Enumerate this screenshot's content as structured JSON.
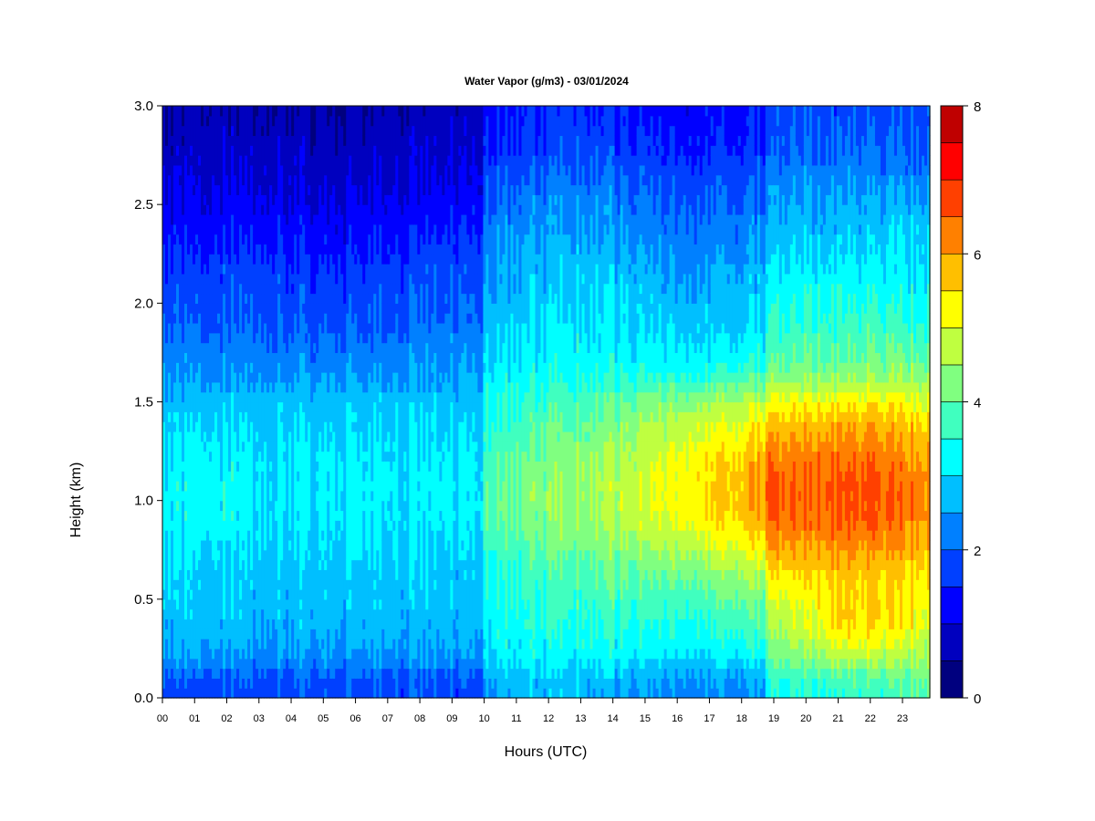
{
  "chart_data": {
    "type": "heatmap",
    "title": "Water Vapor (g/m3) - 03/01/2024",
    "xlabel": "Hours (UTC)",
    "ylabel": "Height (km)",
    "x_ticks": [
      "00",
      "01",
      "02",
      "03",
      "04",
      "05",
      "06",
      "07",
      "08",
      "09",
      "10",
      "11",
      "12",
      "13",
      "14",
      "15",
      "16",
      "17",
      "18",
      "19",
      "20",
      "21",
      "22",
      "23"
    ],
    "xlim": [
      0,
      23.85
    ],
    "y_ticks": [
      "0.0",
      "0.5",
      "1.0",
      "1.5",
      "2.0",
      "2.5",
      "3.0"
    ],
    "ylim": [
      0,
      3.0
    ],
    "colorbar": {
      "ticks": [
        "0",
        "2",
        "4",
        "6",
        "8"
      ],
      "range": [
        0,
        8
      ],
      "levels": [
        0,
        0.5,
        1,
        1.5,
        2,
        2.5,
        3,
        3.5,
        4,
        4.5,
        5,
        5.5,
        6,
        6.5,
        7,
        7.5,
        8
      ],
      "colors": [
        "#00007F",
        "#0000BF",
        "#0000FF",
        "#0040FF",
        "#0080FF",
        "#00BFFF",
        "#00FFFF",
        "#40FFBF",
        "#80FF80",
        "#BFFF40",
        "#FFFF00",
        "#FFBF00",
        "#FF8000",
        "#FF4000",
        "#FF0000",
        "#BF0000"
      ]
    },
    "hours": [
      0,
      1,
      2,
      3,
      4,
      5,
      6,
      7,
      8,
      9,
      9.95,
      10.05,
      11,
      12,
      13,
      14,
      15,
      16,
      17,
      18,
      18.7,
      18.8,
      19,
      20,
      21,
      22,
      23,
      23.85
    ],
    "heights": [
      0,
      0.1,
      0.2,
      0.3,
      0.4,
      0.5,
      0.6,
      0.7,
      0.8,
      0.9,
      1.0,
      1.1,
      1.2,
      1.3,
      1.4,
      1.5,
      1.6,
      1.7,
      1.8,
      1.9,
      2.0,
      2.1,
      2.2,
      2.3,
      2.4,
      2.5,
      2.6,
      2.7,
      2.8,
      2.9,
      3.0
    ],
    "values_by_hour": [
      [
        1.8,
        1.9,
        2.5,
        2.7,
        2.8,
        2.9,
        2.9,
        3.0,
        3.1,
        3.2,
        3.2,
        3.2,
        3.1,
        3.0,
        2.9,
        2.8,
        2.5,
        2.3,
        2.2,
        2.0,
        1.9,
        1.8,
        1.7,
        1.5,
        1.3,
        1.2,
        1.0,
        0.9,
        0.7,
        0.6,
        0.5
      ],
      [
        1.8,
        1.9,
        2.5,
        2.7,
        2.8,
        2.9,
        2.9,
        3.0,
        3.1,
        3.3,
        3.3,
        3.3,
        3.2,
        3.1,
        3.0,
        2.8,
        2.5,
        2.3,
        2.2,
        2.0,
        1.9,
        1.8,
        1.6,
        1.4,
        1.3,
        1.1,
        1.0,
        0.9,
        0.8,
        0.7,
        0.6
      ],
      [
        1.8,
        1.9,
        2.5,
        2.7,
        2.8,
        2.9,
        2.9,
        3.0,
        3.1,
        3.3,
        3.3,
        3.3,
        3.2,
        3.1,
        3.0,
        2.8,
        2.5,
        2.3,
        2.2,
        2.0,
        1.9,
        1.8,
        1.7,
        1.5,
        1.3,
        1.2,
        1.0,
        0.9,
        0.8,
        0.7,
        0.6
      ],
      [
        1.8,
        1.9,
        2.4,
        2.6,
        2.7,
        2.8,
        2.8,
        2.9,
        3.0,
        3.1,
        3.1,
        3.1,
        3.1,
        3.0,
        2.9,
        2.8,
        2.5,
        2.3,
        2.2,
        2.0,
        1.9,
        1.8,
        1.7,
        1.5,
        1.3,
        1.2,
        1.0,
        0.9,
        0.8,
        0.7,
        0.6
      ],
      [
        1.8,
        1.9,
        2.4,
        2.6,
        2.7,
        2.8,
        2.8,
        2.9,
        3.0,
        3.1,
        3.1,
        3.1,
        3.1,
        3.0,
        2.9,
        2.8,
        2.5,
        2.3,
        2.1,
        2.0,
        1.8,
        1.7,
        1.6,
        1.4,
        1.3,
        1.1,
        1.0,
        0.9,
        0.8,
        0.7,
        0.6
      ],
      [
        1.8,
        1.9,
        2.4,
        2.6,
        2.7,
        2.8,
        2.8,
        2.9,
        3.0,
        3.1,
        3.1,
        3.1,
        3.1,
        3.0,
        2.9,
        2.8,
        2.5,
        2.3,
        2.1,
        1.9,
        1.8,
        1.7,
        1.5,
        1.3,
        1.2,
        1.0,
        0.9,
        0.8,
        0.7,
        0.6,
        0.5
      ],
      [
        1.8,
        1.9,
        2.4,
        2.6,
        2.7,
        2.8,
        2.8,
        2.9,
        3.0,
        3.1,
        3.1,
        3.1,
        3.1,
        3.0,
        2.9,
        2.8,
        2.5,
        2.3,
        2.1,
        1.9,
        1.8,
        1.7,
        1.5,
        1.3,
        1.2,
        1.0,
        0.9,
        0.8,
        0.7,
        0.6,
        0.5
      ],
      [
        1.8,
        1.9,
        2.4,
        2.6,
        2.7,
        2.8,
        2.8,
        2.9,
        3.0,
        3.1,
        3.1,
        3.1,
        3.1,
        3.0,
        2.9,
        2.8,
        2.5,
        2.3,
        2.1,
        1.9,
        1.8,
        1.7,
        1.6,
        1.4,
        1.3,
        1.1,
        1.0,
        0.9,
        0.8,
        0.7,
        0.6
      ],
      [
        1.8,
        1.9,
        2.4,
        2.6,
        2.7,
        2.8,
        2.8,
        2.9,
        3.0,
        3.1,
        3.1,
        3.1,
        3.1,
        3.0,
        2.9,
        2.8,
        2.5,
        2.3,
        2.2,
        2.0,
        1.9,
        1.8,
        1.7,
        1.5,
        1.3,
        1.2,
        1.0,
        0.9,
        0.8,
        0.7,
        0.6
      ],
      [
        1.8,
        1.9,
        2.4,
        2.6,
        2.7,
        2.8,
        2.8,
        2.9,
        3.0,
        3.2,
        3.2,
        3.2,
        3.1,
        3.0,
        2.9,
        2.8,
        2.6,
        2.4,
        2.3,
        2.1,
        2.0,
        1.9,
        1.8,
        1.6,
        1.4,
        1.3,
        1.1,
        1.0,
        0.9,
        0.8,
        0.7
      ],
      [
        1.8,
        2.0,
        2.5,
        2.7,
        2.8,
        2.9,
        2.9,
        3.0,
        3.1,
        3.2,
        3.2,
        3.2,
        3.2,
        3.1,
        3.0,
        2.9,
        2.7,
        2.5,
        2.4,
        2.2,
        2.1,
        2.0,
        1.9,
        1.7,
        1.5,
        1.4,
        1.2,
        1.1,
        1.0,
        0.9,
        0.8
      ],
      [
        2.6,
        2.7,
        3.1,
        3.2,
        3.3,
        3.4,
        3.5,
        3.6,
        3.8,
        4.0,
        4.1,
        4.0,
        3.8,
        3.7,
        3.6,
        3.5,
        3.3,
        3.1,
        3.0,
        2.9,
        2.8,
        2.6,
        2.5,
        2.4,
        2.3,
        2.1,
        2.0,
        1.8,
        1.6,
        1.5,
        1.4
      ],
      [
        2.7,
        2.8,
        3.2,
        3.3,
        3.4,
        3.5,
        3.6,
        3.7,
        3.9,
        4.1,
        4.2,
        4.1,
        4.0,
        3.8,
        3.7,
        3.6,
        3.3,
        3.1,
        3.0,
        2.9,
        2.8,
        2.7,
        2.6,
        2.5,
        2.3,
        2.2,
        2.0,
        1.8,
        1.6,
        1.5,
        1.4
      ],
      [
        2.7,
        2.8,
        3.2,
        3.3,
        3.5,
        3.6,
        3.7,
        3.9,
        4.1,
        4.3,
        4.4,
        4.3,
        4.2,
        4.0,
        3.9,
        3.7,
        3.4,
        3.2,
        3.1,
        3.0,
        2.9,
        2.8,
        2.7,
        2.6,
        2.4,
        2.3,
        2.1,
        1.9,
        1.7,
        1.6,
        1.5
      ],
      [
        2.7,
        2.8,
        3.2,
        3.4,
        3.6,
        3.7,
        3.8,
        4.0,
        4.2,
        4.4,
        4.5,
        4.5,
        4.4,
        4.2,
        4.0,
        3.8,
        3.5,
        3.3,
        3.2,
        3.1,
        3.0,
        2.9,
        2.8,
        2.7,
        2.5,
        2.4,
        2.2,
        2.0,
        1.8,
        1.7,
        1.6
      ],
      [
        2.6,
        2.7,
        3.2,
        3.4,
        3.6,
        3.8,
        3.9,
        4.1,
        4.4,
        4.6,
        4.7,
        4.7,
        4.6,
        4.4,
        4.2,
        4.0,
        3.6,
        3.3,
        3.2,
        3.1,
        3.0,
        2.9,
        2.7,
        2.6,
        2.4,
        2.3,
        2.1,
        1.9,
        1.7,
        1.6,
        1.5
      ],
      [
        2.5,
        2.6,
        3.1,
        3.4,
        3.6,
        3.8,
        4.0,
        4.3,
        4.6,
        4.9,
        5.0,
        5.0,
        4.9,
        4.7,
        4.5,
        4.2,
        3.7,
        3.3,
        3.1,
        3.0,
        2.9,
        2.8,
        2.6,
        2.5,
        2.3,
        2.2,
        2.0,
        1.8,
        1.6,
        1.5,
        1.4
      ],
      [
        2.4,
        2.6,
        3.1,
        3.4,
        3.6,
        3.9,
        4.1,
        4.5,
        4.8,
        5.2,
        5.3,
        5.3,
        5.2,
        5.0,
        4.8,
        4.4,
        3.8,
        3.3,
        3.1,
        2.9,
        2.8,
        2.6,
        2.5,
        2.3,
        2.2,
        2.0,
        1.9,
        1.7,
        1.5,
        1.4,
        1.3
      ],
      [
        2.3,
        2.5,
        3.0,
        3.4,
        3.6,
        3.9,
        4.2,
        4.6,
        5.0,
        5.4,
        5.5,
        5.5,
        5.4,
        5.2,
        4.9,
        4.5,
        3.8,
        3.3,
        3.1,
        2.9,
        2.8,
        2.6,
        2.5,
        2.3,
        2.2,
        2.0,
        1.9,
        1.7,
        1.5,
        1.4,
        1.3
      ],
      [
        2.3,
        2.5,
        3.1,
        3.5,
        3.8,
        4.1,
        4.4,
        4.8,
        5.2,
        5.6,
        5.7,
        5.7,
        5.6,
        5.3,
        5.0,
        4.6,
        3.9,
        3.4,
        3.1,
        2.9,
        2.8,
        2.7,
        2.5,
        2.3,
        2.2,
        2.0,
        1.9,
        1.7,
        1.5,
        1.4,
        1.3
      ],
      [
        2.4,
        2.6,
        3.2,
        3.6,
        3.9,
        4.2,
        4.5,
        5.0,
        5.5,
        5.9,
        6.0,
        6.0,
        5.9,
        5.6,
        5.3,
        4.8,
        4.0,
        3.5,
        3.2,
        3.0,
        2.9,
        2.7,
        2.6,
        2.4,
        2.3,
        2.1,
        2.0,
        1.8,
        1.6,
        1.5,
        1.4
      ],
      [
        3.1,
        3.3,
        3.8,
        4.2,
        4.5,
        4.8,
        5.1,
        5.6,
        6.0,
        6.4,
        6.6,
        6.6,
        6.4,
        6.1,
        5.7,
        5.1,
        4.4,
        3.9,
        3.6,
        3.4,
        3.3,
        3.1,
        2.9,
        2.7,
        2.5,
        2.4,
        2.2,
        2.0,
        1.8,
        1.7,
        1.6
      ],
      [
        3.3,
        3.5,
        4.0,
        4.3,
        4.6,
        4.9,
        5.2,
        5.7,
        6.0,
        6.4,
        6.5,
        6.5,
        6.3,
        6.0,
        5.6,
        5.1,
        4.4,
        3.9,
        3.7,
        3.5,
        3.4,
        3.2,
        3.0,
        2.8,
        2.6,
        2.5,
        2.3,
        2.1,
        1.9,
        1.8,
        1.7
      ],
      [
        3.5,
        3.7,
        4.3,
        4.7,
        5.0,
        5.2,
        5.5,
        5.8,
        6.1,
        6.4,
        6.5,
        6.5,
        6.3,
        6.0,
        5.7,
        5.2,
        4.5,
        4.0,
        3.8,
        3.6,
        3.5,
        3.3,
        3.1,
        2.9,
        2.7,
        2.6,
        2.4,
        2.2,
        2.0,
        1.9,
        1.8
      ],
      [
        3.6,
        3.8,
        4.6,
        5.3,
        5.6,
        5.5,
        5.6,
        5.9,
        6.2,
        6.5,
        6.6,
        6.6,
        6.4,
        6.1,
        5.8,
        5.3,
        4.6,
        4.0,
        3.8,
        3.6,
        3.5,
        3.3,
        3.1,
        2.9,
        2.7,
        2.6,
        2.4,
        2.2,
        2.0,
        1.9,
        1.8
      ],
      [
        3.6,
        3.9,
        4.6,
        5.2,
        5.5,
        5.5,
        5.6,
        5.9,
        6.2,
        6.5,
        6.6,
        6.6,
        6.4,
        6.1,
        5.8,
        5.3,
        4.6,
        4.1,
        3.9,
        3.7,
        3.5,
        3.3,
        3.1,
        2.9,
        2.7,
        2.6,
        2.4,
        2.2,
        2.0,
        1.9,
        1.8
      ],
      [
        3.8,
        4.0,
        4.6,
        5.1,
        5.4,
        5.4,
        5.5,
        5.8,
        6.1,
        6.3,
        6.4,
        6.4,
        6.2,
        6.0,
        5.7,
        5.2,
        4.6,
        4.1,
        3.9,
        3.6,
        3.4,
        3.2,
        3.1,
        3.0,
        2.9,
        2.7,
        2.4,
        2.2,
        2.0,
        1.9,
        1.8
      ],
      [
        4.0,
        4.1,
        4.5,
        4.8,
        5.0,
        5.2,
        5.4,
        5.6,
        5.9,
        6.1,
        6.2,
        6.2,
        6.0,
        5.8,
        5.5,
        5.0,
        4.5,
        4.0,
        3.8,
        3.5,
        3.3,
        3.2,
        3.1,
        3.0,
        2.8,
        2.6,
        2.3,
        2.1,
        1.9,
        1.8,
        1.7
      ]
    ]
  }
}
